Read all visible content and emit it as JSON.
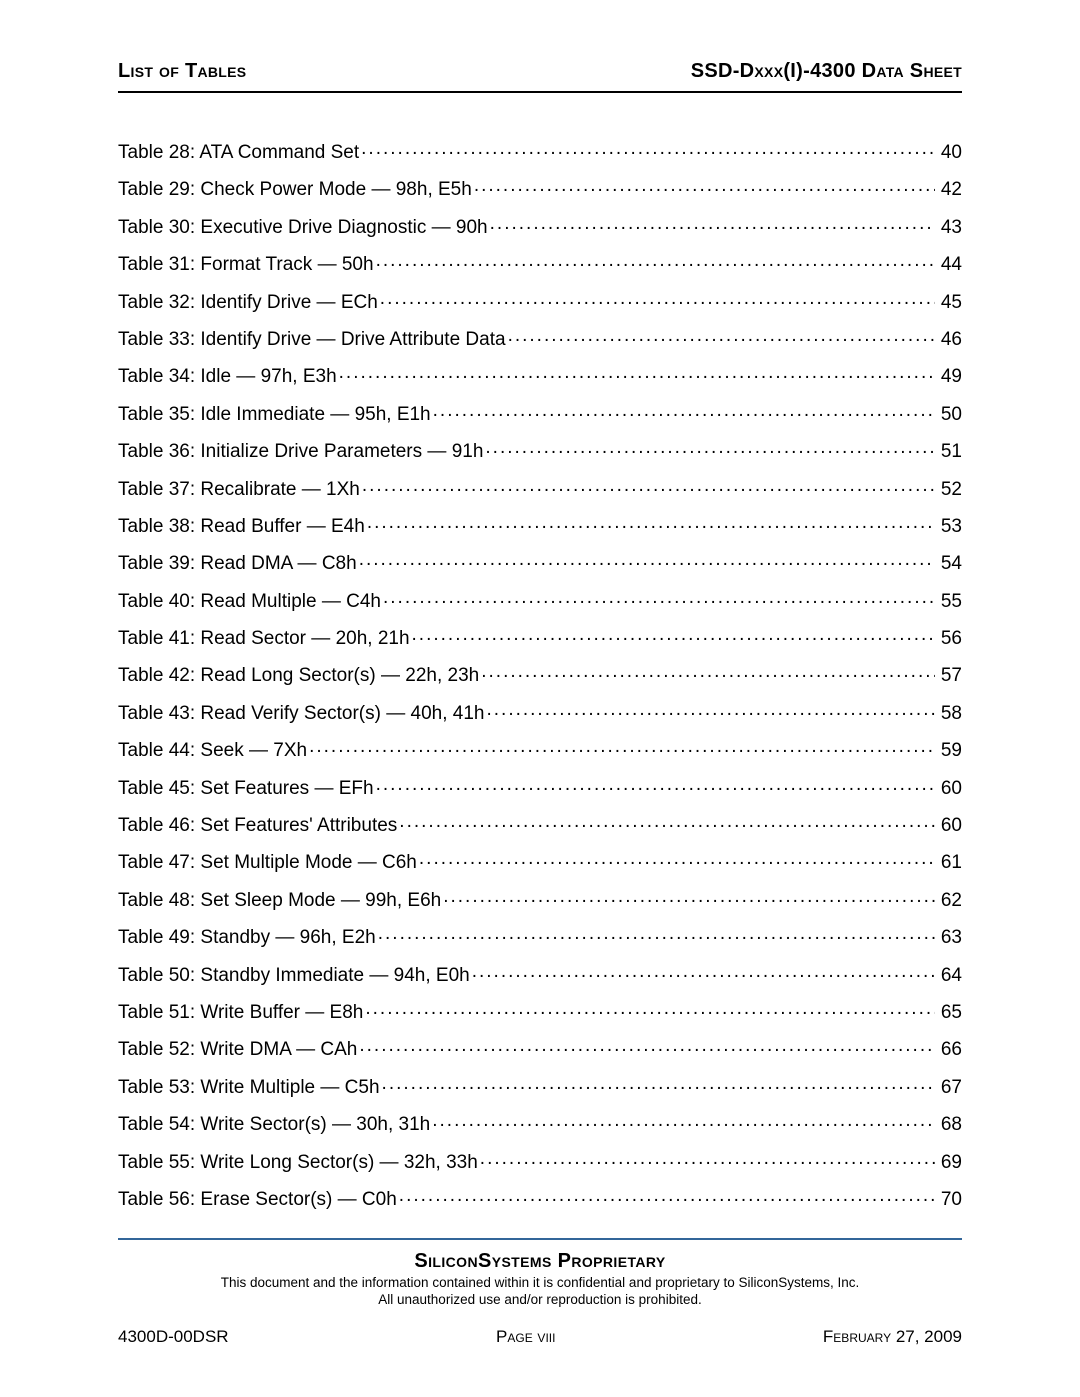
{
  "header": {
    "left": "List of Tables",
    "right": "SSD-Dxxx(I)-4300 Data Sheet"
  },
  "toc": {
    "entries": [
      {
        "label": "Table 28: ATA Command Set",
        "page": "40"
      },
      {
        "label": "Table 29: Check Power Mode — 98h, E5h",
        "page": "42"
      },
      {
        "label": "Table 30: Executive Drive Diagnostic — 90h",
        "page": "43"
      },
      {
        "label": "Table 31: Format Track — 50h",
        "page": "44"
      },
      {
        "label": "Table 32: Identify Drive — ECh",
        "page": "45"
      },
      {
        "label": "Table 33: Identify Drive — Drive Attribute Data",
        "page": "46"
      },
      {
        "label": "Table 34: Idle — 97h, E3h",
        "page": "49"
      },
      {
        "label": "Table 35: Idle Immediate — 95h, E1h",
        "page": "50"
      },
      {
        "label": "Table 36: Initialize Drive Parameters — 91h",
        "page": "51"
      },
      {
        "label": "Table 37: Recalibrate — 1Xh",
        "page": "52"
      },
      {
        "label": "Table 38: Read Buffer — E4h",
        "page": "53"
      },
      {
        "label": "Table 39: Read DMA — C8h",
        "page": "54"
      },
      {
        "label": "Table 40: Read Multiple — C4h",
        "page": "55"
      },
      {
        "label": "Table 41: Read Sector — 20h, 21h",
        "page": "56"
      },
      {
        "label": "Table 42: Read Long Sector(s) — 22h, 23h",
        "page": "57"
      },
      {
        "label": "Table 43: Read Verify Sector(s) — 40h, 41h",
        "page": "58"
      },
      {
        "label": "Table 44: Seek — 7Xh",
        "page": "59"
      },
      {
        "label": "Table 45: Set Features — EFh",
        "page": "60"
      },
      {
        "label": "Table 46: Set Features' Attributes",
        "page": "60"
      },
      {
        "label": "Table 47: Set Multiple Mode — C6h",
        "page": "61"
      },
      {
        "label": "Table 48: Set Sleep Mode — 99h, E6h",
        "page": "62"
      },
      {
        "label": "Table 49: Standby — 96h, E2h",
        "page": "63"
      },
      {
        "label": "Table 50: Standby Immediate — 94h, E0h",
        "page": "64"
      },
      {
        "label": "Table 51: Write Buffer — E8h",
        "page": "65"
      },
      {
        "label": "Table 52: Write DMA — CAh",
        "page": "66"
      },
      {
        "label": "Table 53: Write Multiple — C5h",
        "page": "67"
      },
      {
        "label": "Table 54: Write Sector(s) — 30h, 31h",
        "page": "68"
      },
      {
        "label": "Table 55: Write Long Sector(s) — 32h, 33h",
        "page": "69"
      },
      {
        "label": "Table 56: Erase Sector(s) — C0h",
        "page": "70"
      }
    ]
  },
  "footer": {
    "title": "SiliconSystems Proprietary",
    "note_line1": "This document and the information contained within it is confidential and proprietary to SiliconSystems, Inc.",
    "note_line2": "All unauthorized use and/or reproduction is prohibited.",
    "left": "4300D-00DSR",
    "center": "Page viii",
    "right": "February 27, 2009"
  },
  "colors": {
    "text": "#000000",
    "rule_top": "#000000",
    "rule_footer": "#336699",
    "background": "#ffffff"
  },
  "typography": {
    "header_fontsize_pt": 15,
    "body_fontsize_pt": 14,
    "footer_title_fontsize_pt": 15,
    "footer_note_fontsize_pt": 10,
    "footer_row_fontsize_pt": 12,
    "font_family": "Arial"
  }
}
